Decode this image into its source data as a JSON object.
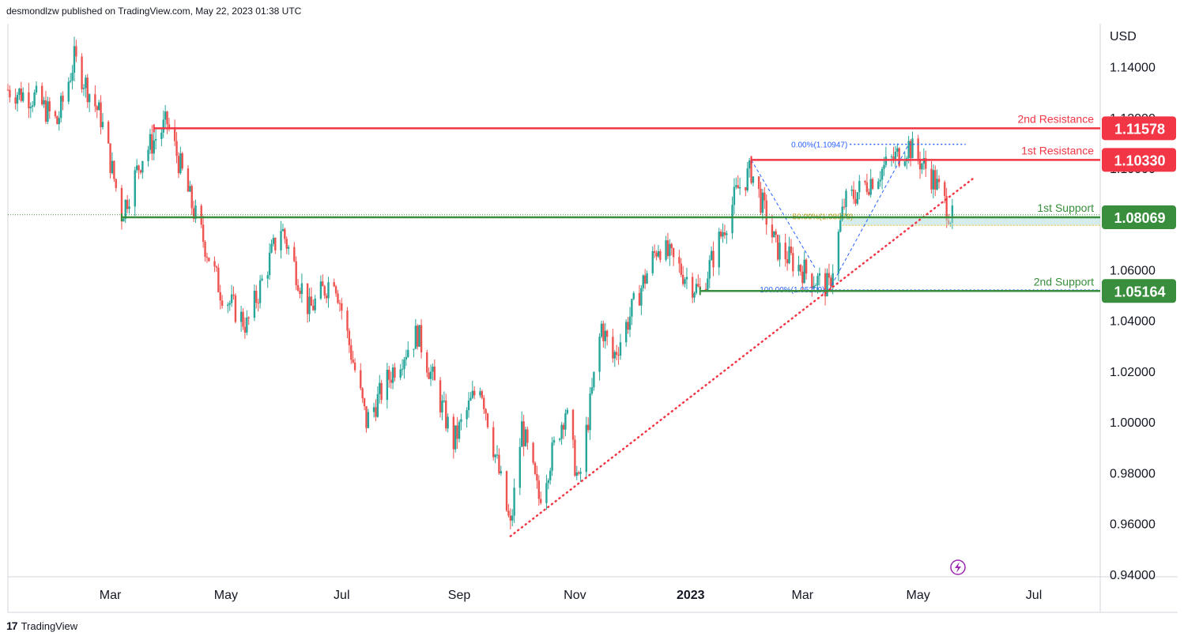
{
  "header": {
    "publisher": "desmondlzw published on TradingView.com, May 22, 2023 01:38 UTC"
  },
  "footer": {
    "brand": "TradingView",
    "logo_glyph": "17"
  },
  "colors": {
    "resistance": "#f23645",
    "support": "#388e3c",
    "candle_up": "#26a69a",
    "candle_down": "#ef5350",
    "trendline": "#f23645",
    "fib": "#2962ff"
  },
  "chart_data": {
    "type": "candlestick",
    "currency": "USD",
    "y_ticks": [
      "1.14000",
      "1.12000",
      "1.10000",
      "1.06000",
      "1.04000",
      "1.02000",
      "1.00000",
      "0.98000",
      "0.96000",
      "0.94000"
    ],
    "y_tick_values": [
      1.14,
      1.12,
      1.1,
      1.06,
      1.04,
      1.02,
      1.0,
      0.98,
      0.96,
      0.94
    ],
    "ylim": [
      0.939,
      1.157
    ],
    "x_ticks": [
      {
        "label": "Mar",
        "date": "2022-03-01"
      },
      {
        "label": "May",
        "date": "2022-05-01"
      },
      {
        "label": "Jul",
        "date": "2022-07-01"
      },
      {
        "label": "Sep",
        "date": "2022-09-01"
      },
      {
        "label": "Nov",
        "date": "2022-11-01"
      },
      {
        "label": "2023",
        "date": "2023-01-01",
        "bold": true
      },
      {
        "label": "Mar",
        "date": "2023-03-01"
      },
      {
        "label": "May",
        "date": "2023-05-01"
      },
      {
        "label": "Jul",
        "date": "2023-07-01"
      }
    ],
    "xlim": [
      "2022-01-06",
      "2023-08-05"
    ],
    "price_path": [
      {
        "date": "2022-01-06",
        "price": 1.131
      },
      {
        "date": "2022-01-20",
        "price": 1.128
      },
      {
        "date": "2022-02-01",
        "price": 1.118
      },
      {
        "date": "2022-02-10",
        "price": 1.143
      },
      {
        "date": "2022-02-24",
        "price": 1.12
      },
      {
        "date": "2022-03-07",
        "price": 1.082
      },
      {
        "date": "2022-03-18",
        "price": 1.105
      },
      {
        "date": "2022-03-31",
        "price": 1.118
      },
      {
        "date": "2022-04-14",
        "price": 1.083
      },
      {
        "date": "2022-04-28",
        "price": 1.052
      },
      {
        "date": "2022-05-12",
        "price": 1.038
      },
      {
        "date": "2022-05-30",
        "price": 1.077
      },
      {
        "date": "2022-06-14",
        "price": 1.044
      },
      {
        "date": "2022-06-27",
        "price": 1.058
      },
      {
        "date": "2022-07-14",
        "price": 1.0
      },
      {
        "date": "2022-07-29",
        "price": 1.022
      },
      {
        "date": "2022-08-10",
        "price": 1.035
      },
      {
        "date": "2022-08-29",
        "price": 0.992
      },
      {
        "date": "2022-09-12",
        "price": 1.016
      },
      {
        "date": "2022-09-28",
        "price": 0.958
      },
      {
        "date": "2022-10-04",
        "price": 0.998
      },
      {
        "date": "2022-10-13",
        "price": 0.97
      },
      {
        "date": "2022-10-27",
        "price": 1.005
      },
      {
        "date": "2022-11-03",
        "price": 0.975
      },
      {
        "date": "2022-11-15",
        "price": 1.038
      },
      {
        "date": "2022-11-21",
        "price": 1.025
      },
      {
        "date": "2022-12-15",
        "price": 1.07
      },
      {
        "date": "2023-01-06",
        "price": 1.051
      },
      {
        "date": "2023-01-26",
        "price": 1.092
      },
      {
        "date": "2023-02-02",
        "price": 1.099
      },
      {
        "date": "2023-02-15",
        "price": 1.069
      },
      {
        "date": "2023-03-06",
        "price": 1.057
      },
      {
        "date": "2023-03-15",
        "price": 1.053
      },
      {
        "date": "2023-03-23",
        "price": 1.086
      },
      {
        "date": "2023-04-14",
        "price": 1.101
      },
      {
        "date": "2023-04-26",
        "price": 1.109
      },
      {
        "date": "2023-05-09",
        "price": 1.096
      },
      {
        "date": "2023-05-19",
        "price": 1.08
      }
    ],
    "levels": [
      {
        "name": "2nd Resistance",
        "value": 1.11578,
        "label": "1.11578",
        "kind": "resistance",
        "start": "2022-03-24"
      },
      {
        "name": "1st Resistance",
        "value": 1.1033,
        "label": "1.10330",
        "kind": "resistance",
        "start": "2023-02-02"
      },
      {
        "name": "1st Support",
        "value": 1.08069,
        "label": "1.08069",
        "kind": "support",
        "start": "2022-03-07"
      },
      {
        "name": "2nd Support",
        "value": 1.05164,
        "label": "1.05164",
        "kind": "support",
        "start": "2023-01-06"
      }
    ],
    "fibonacci": {
      "top": {
        "label": "0.00%(1.10947)",
        "value": 1.10947
      },
      "mid": {
        "label": "50.00%(1.08078)",
        "value": 1.08078
      },
      "bottom": {
        "label": "100.00%(1.05209)",
        "value": 1.05209
      },
      "start": "2023-03-15",
      "end": "2023-04-26"
    },
    "trendline": {
      "from": {
        "date": "2022-09-28",
        "price": 0.955
      },
      "to": {
        "date": "2023-05-30",
        "price": 1.096
      }
    },
    "current_price": 1.0817
  }
}
